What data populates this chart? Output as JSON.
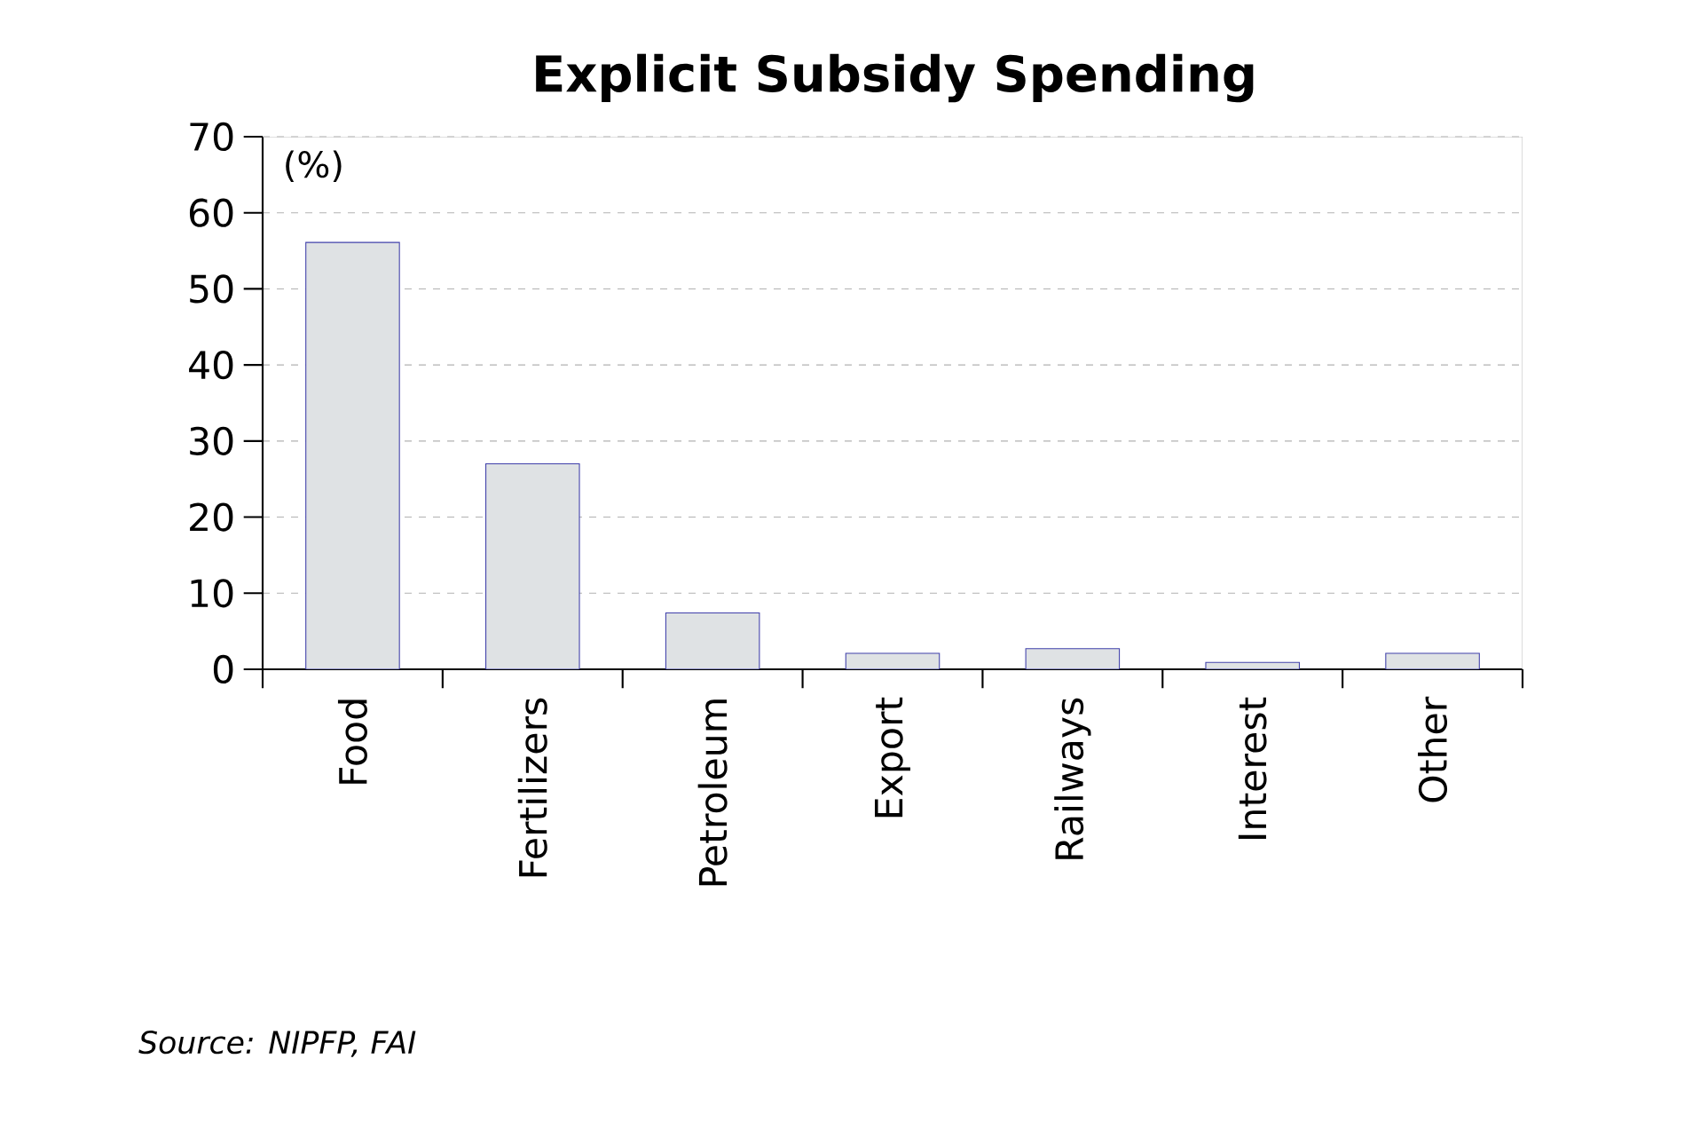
{
  "chart_data": {
    "type": "bar",
    "title": "Explicit Subsidy Spending",
    "ylabel": "(%)",
    "categories": [
      "Food",
      "Fertilizers",
      "Petroleum",
      "Export",
      "Railways",
      "Interest",
      "Other"
    ],
    "values": [
      56.1,
      27.0,
      7.4,
      2.1,
      2.7,
      0.9,
      2.1
    ],
    "color": "#dfe2e4",
    "ylim": [
      0,
      70
    ],
    "yticks": [
      0,
      10,
      20,
      30,
      40,
      50,
      60,
      70
    ],
    "grid": "y",
    "annotations": [
      "Source: NIPFP, FAI"
    ]
  }
}
